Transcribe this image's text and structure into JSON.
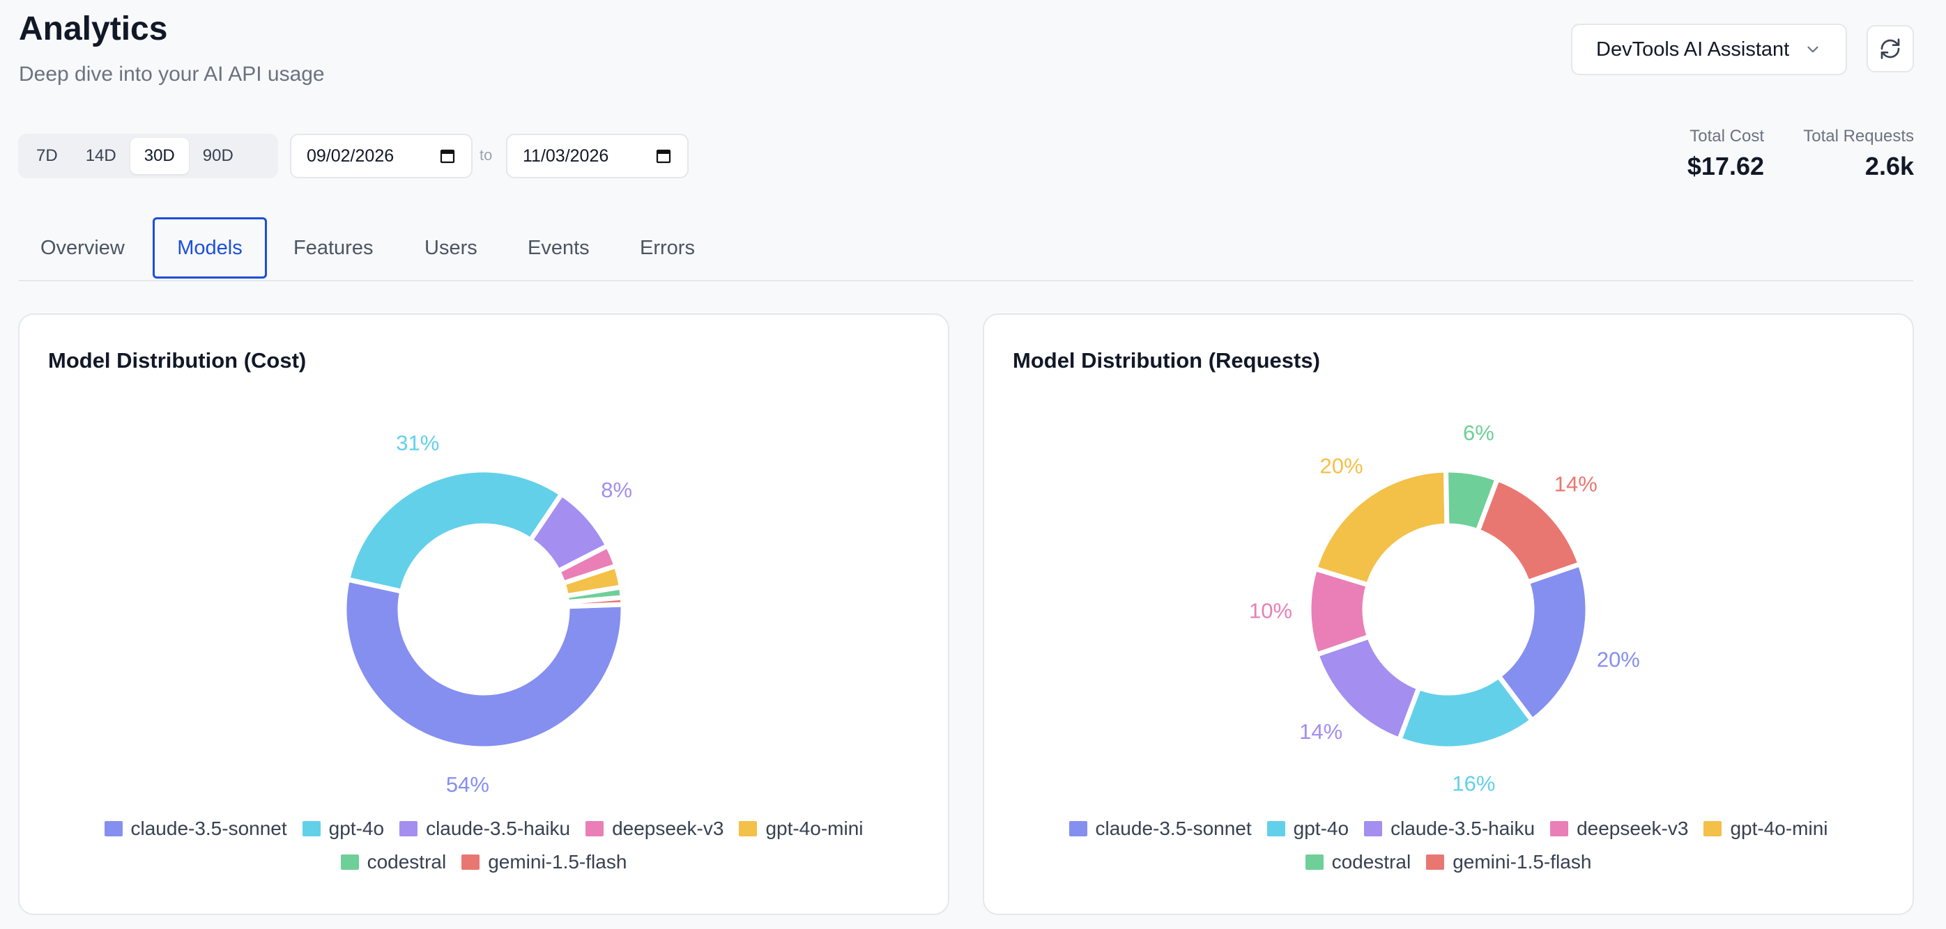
{
  "header": {
    "title": "Analytics",
    "subtitle": "Deep dive into your AI API usage",
    "project": "DevTools AI Assistant"
  },
  "filters": {
    "ranges": [
      "7D",
      "14D",
      "30D",
      "90D"
    ],
    "active_range": "30D",
    "start_date": "09/02/2026",
    "to_label": "to",
    "end_date": "11/03/2026"
  },
  "stats": {
    "total_cost_label": "Total Cost",
    "total_cost": "$17.62",
    "total_requests_label": "Total Requests",
    "total_requests": "2.6k"
  },
  "tabs": [
    "Overview",
    "Models",
    "Features",
    "Users",
    "Events",
    "Errors"
  ],
  "active_tab": "Models",
  "colors": {
    "claude-3.5-sonnet": "#858ff0",
    "gpt-4o": "#63d0ea",
    "claude-3.5-haiku": "#a48ef0",
    "deepseek-v3": "#e97fb6",
    "gpt-4o-mini": "#f3c048",
    "codestral": "#6ecf98",
    "gemini-1.5-flash": "#e97771"
  },
  "chart_data": [
    {
      "type": "pie",
      "title": "Model Distribution (Cost)",
      "categories": [
        "claude-3.5-sonnet",
        "gpt-4o",
        "claude-3.5-haiku",
        "deepseek-v3",
        "gpt-4o-mini",
        "codestral",
        "gemini-1.5-flash"
      ],
      "values": [
        54,
        31,
        8,
        2.5,
        2.5,
        1.2,
        0.8
      ],
      "labels": [
        "54%",
        "31%",
        "8%",
        "",
        "",
        "",
        ""
      ],
      "legend_position": "bottom"
    },
    {
      "type": "pie",
      "title": "Model Distribution (Requests)",
      "categories": [
        "claude-3.5-sonnet",
        "gpt-4o",
        "claude-3.5-haiku",
        "deepseek-v3",
        "gpt-4o-mini",
        "codestral",
        "gemini-1.5-flash"
      ],
      "values": [
        20,
        16,
        14,
        10,
        20,
        6,
        14
      ],
      "labels": [
        "20%",
        "16%",
        "14%",
        "10%",
        "20%",
        "6%",
        "14%"
      ],
      "legend_position": "bottom"
    }
  ]
}
